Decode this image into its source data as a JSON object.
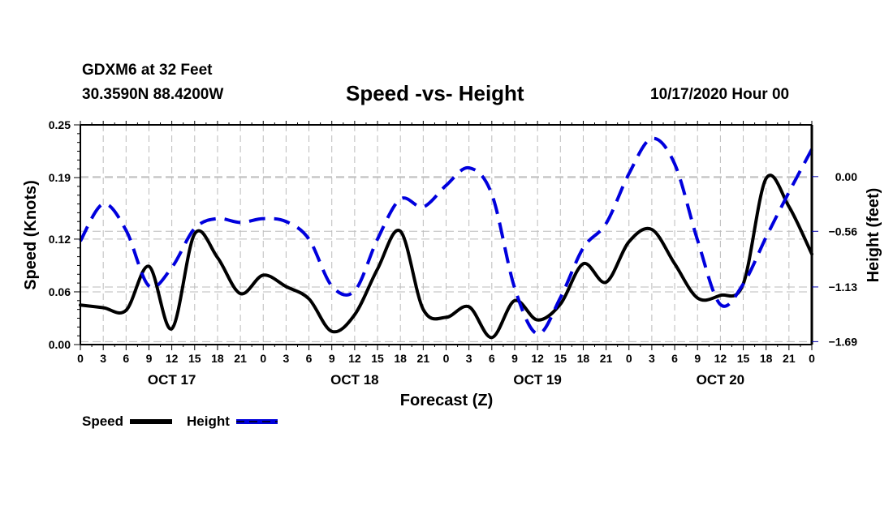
{
  "header": {
    "station": "GDXM6 at 32 Feet",
    "coords": "30.3590N 88.4200W",
    "title": "Speed -vs- Height",
    "datetime": "10/17/2020 Hour 00"
  },
  "colors": {
    "speed": "#000000",
    "height": "#0000dd",
    "grid": "#bbbbbb"
  },
  "chart_data": {
    "type": "line",
    "title": "Speed -vs- Height",
    "xlabel": "Forecast (Z)",
    "ylabel": "Speed (Knots)",
    "y2label": "Height (feet)",
    "x_hours": [
      0,
      3,
      6,
      9,
      12,
      15,
      18,
      21,
      24,
      27,
      30,
      33,
      36,
      39,
      42,
      45,
      48,
      51,
      54,
      57,
      60,
      63,
      66,
      69,
      72,
      75,
      78,
      81,
      84,
      87,
      90,
      93,
      96
    ],
    "x_tick_labels": [
      "0",
      "3",
      "6",
      "9",
      "12",
      "15",
      "18",
      "21",
      "0",
      "3",
      "6",
      "9",
      "12",
      "15",
      "18",
      "21",
      "0",
      "3",
      "6",
      "9",
      "12",
      "15",
      "18",
      "21",
      "0",
      "3",
      "6",
      "9",
      "12",
      "15",
      "18",
      "21",
      "0"
    ],
    "day_labels": [
      {
        "label": "OCT 17",
        "center_hour": 12
      },
      {
        "label": "OCT 18",
        "center_hour": 36
      },
      {
        "label": "OCT 19",
        "center_hour": 60
      },
      {
        "label": "OCT 20",
        "center_hour": 84
      }
    ],
    "ylim": [
      0,
      0.25
    ],
    "y_ticks": [
      0.0,
      0.06,
      0.12,
      0.19,
      0.25
    ],
    "y_tick_labels": [
      "0.00",
      "0.06",
      "0.12",
      "0.19",
      "0.25"
    ],
    "y2lim": [
      -1.72,
      0.53
    ],
    "y2_ticks": [
      0.0,
      -0.56,
      -1.13,
      -1.69
    ],
    "y2_tick_labels": [
      "0.00",
      "-0.56",
      "-1.13",
      "-1.69"
    ],
    "grid": true,
    "legend_position": "bottom-left",
    "series": [
      {
        "name": "Speed",
        "axis": "left",
        "style": "solid",
        "values": [
          0.045,
          0.042,
          0.039,
          0.089,
          0.018,
          0.126,
          0.099,
          0.058,
          0.079,
          0.066,
          0.052,
          0.015,
          0.034,
          0.086,
          0.129,
          0.04,
          0.031,
          0.043,
          0.008,
          0.05,
          0.028,
          0.046,
          0.092,
          0.071,
          0.117,
          0.131,
          0.092,
          0.053,
          0.056,
          0.069,
          0.189,
          0.157,
          0.103
        ]
      },
      {
        "name": "Height",
        "axis": "right",
        "style": "dashed",
        "values": [
          -0.66,
          -0.28,
          -0.55,
          -1.12,
          -0.93,
          -0.53,
          -0.43,
          -0.47,
          -0.43,
          -0.46,
          -0.64,
          -1.12,
          -1.17,
          -0.64,
          -0.23,
          -0.31,
          -0.09,
          0.09,
          -0.18,
          -1.14,
          -1.61,
          -1.24,
          -0.73,
          -0.48,
          0.03,
          0.39,
          0.13,
          -0.65,
          -1.31,
          -1.1,
          -0.62,
          -0.16,
          0.28
        ]
      }
    ]
  },
  "legend": {
    "speed_label": "Speed",
    "height_label": "Height"
  }
}
